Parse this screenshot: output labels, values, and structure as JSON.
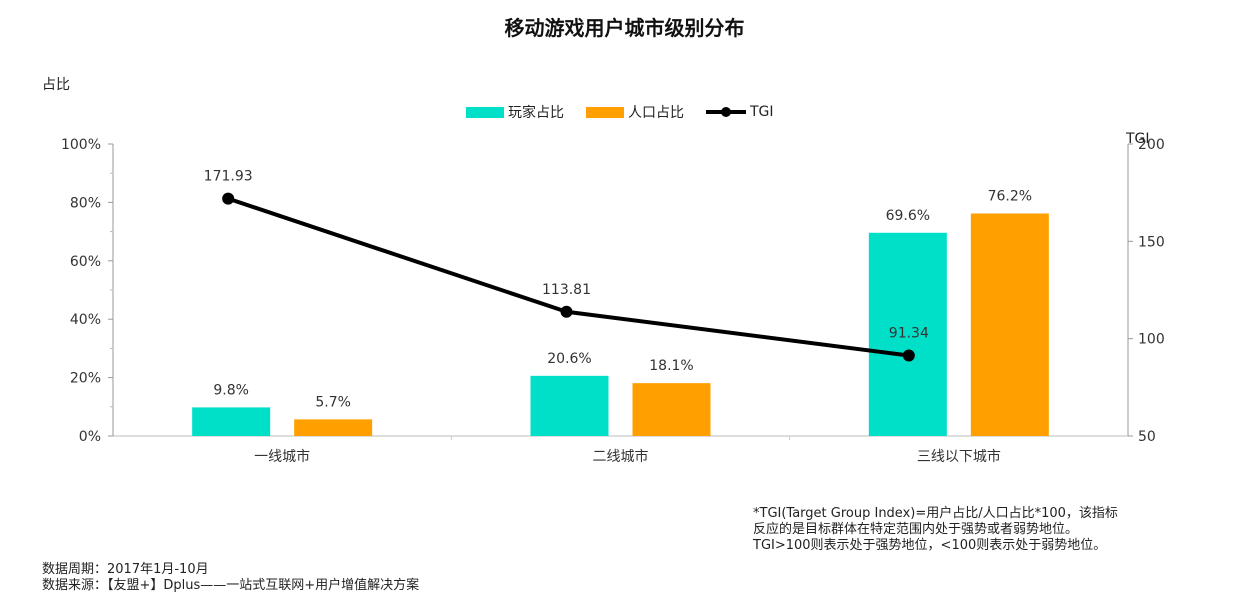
{
  "title": "移动游戏用户城市级别分布",
  "chart_data": {
    "type": "bar",
    "categories": [
      "一线城市",
      "二线城市",
      "三线以下城市"
    ],
    "series": [
      {
        "name": "玩家占比",
        "type": "bar",
        "axis": "left",
        "color": "#00E0C8",
        "values": [
          9.8,
          20.6,
          69.6
        ],
        "labels": [
          "9.8%",
          "20.6%",
          "69.6%"
        ]
      },
      {
        "name": "人口占比",
        "type": "bar",
        "axis": "left",
        "color": "#FFA000",
        "values": [
          5.7,
          18.1,
          76.2
        ],
        "labels": [
          "5.7%",
          "18.1%",
          "76.2%"
        ]
      },
      {
        "name": "TGI",
        "type": "line",
        "axis": "right",
        "color": "#000000",
        "values": [
          171.93,
          113.81,
          91.34
        ],
        "labels": [
          "171.93",
          "113.81",
          "91.34"
        ]
      }
    ],
    "ylabel": "占比",
    "ylim": [
      0,
      100
    ],
    "yticks": [
      "0%",
      "20%",
      "40%",
      "60%",
      "80%",
      "100%"
    ],
    "y2label": "TGI",
    "y2lim": [
      50,
      200
    ],
    "y2ticks": [
      "50",
      "100",
      "150",
      "200"
    ],
    "legend_position": "top-center",
    "grid": false
  },
  "footnote": [
    "*TGI(Target Group Index)=用户占比/人口占比*100，该指标",
    "反应的是目标群体在特定范围内处于强势或者弱势地位。",
    "TGI>100则表示处于强势地位，<100则表示处于弱势地位。"
  ],
  "source": [
    "数据周期：2017年1月-10月",
    "数据来源：【友盟+】Dplus——一站式互联网+用户增值解决方案"
  ]
}
